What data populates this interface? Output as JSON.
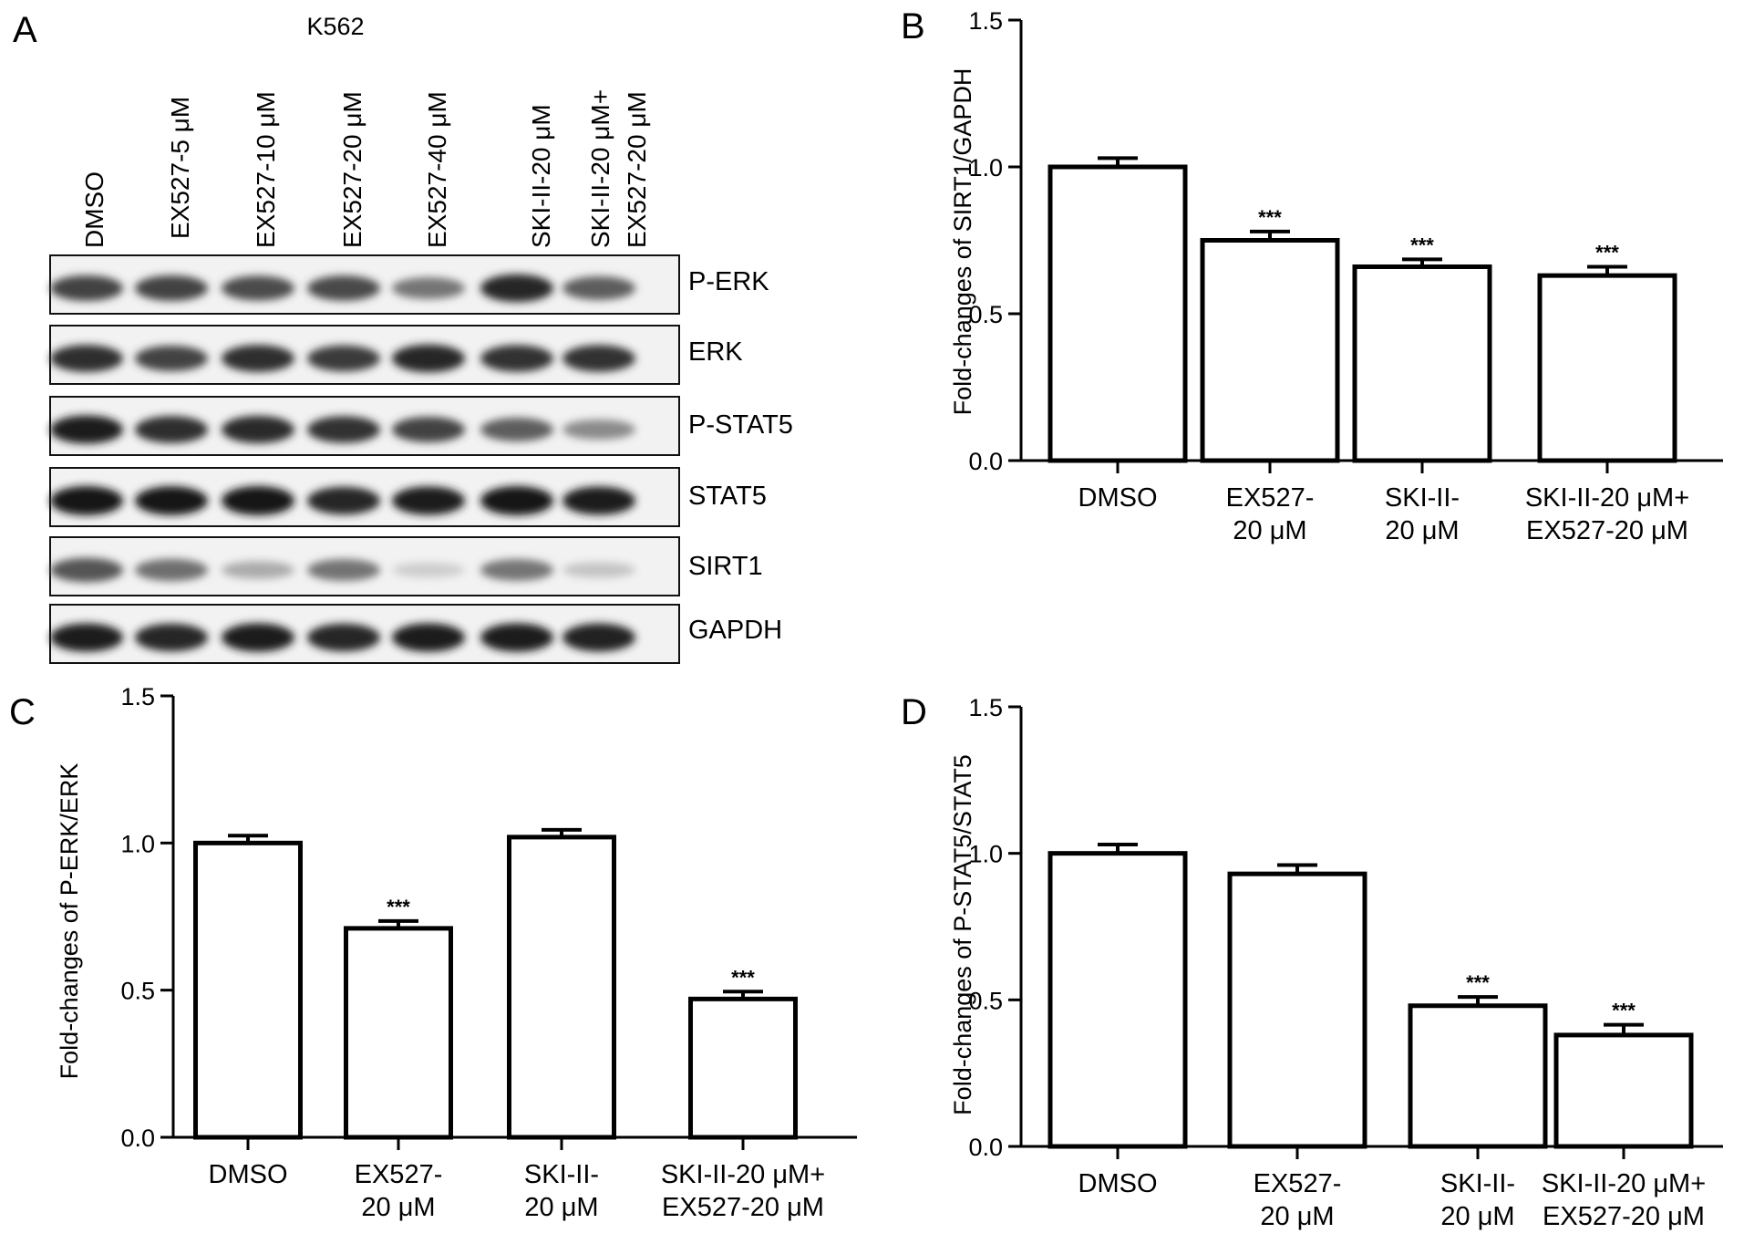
{
  "panel_a": {
    "label": "A",
    "cell_line": "K562",
    "lanes": [
      "DMSO",
      "EX527-5 μM",
      "EX527-10 μM",
      "EX527-20 μM",
      "EX527-40 μM",
      "SKI-II-20 μM",
      "SKI-II-20 μM+",
      "EX527-20 μM"
    ],
    "lane_count": 7,
    "blots": [
      {
        "protein": "P-ERK",
        "intensity": [
          0.78,
          0.78,
          0.74,
          0.76,
          0.55,
          0.92,
          0.66
        ]
      },
      {
        "protein": "ERK",
        "intensity": [
          0.88,
          0.78,
          0.88,
          0.82,
          0.92,
          0.86,
          0.86
        ]
      },
      {
        "protein": "P-STAT5",
        "intensity": [
          0.95,
          0.88,
          0.9,
          0.86,
          0.78,
          0.66,
          0.45
        ]
      },
      {
        "protein": "STAT5",
        "intensity": [
          1.0,
          0.98,
          1.0,
          0.92,
          0.96,
          1.0,
          0.95
        ]
      },
      {
        "protein": "SIRT1",
        "intensity": [
          0.7,
          0.58,
          0.3,
          0.56,
          0.14,
          0.55,
          0.18
        ]
      },
      {
        "protein": "GAPDH",
        "intensity": [
          0.95,
          0.92,
          0.96,
          0.92,
          0.96,
          0.96,
          0.94
        ]
      }
    ]
  },
  "chart_data": [
    {
      "panel": "B",
      "type": "bar",
      "categories": [
        [
          "DMSO"
        ],
        [
          "EX527-",
          "20 μM"
        ],
        [
          "SKI-II-",
          "20 μM"
        ],
        [
          "SKI-II-20 μM+",
          "EX527-20 μM"
        ]
      ],
      "values": [
        1.0,
        0.75,
        0.66,
        0.63
      ],
      "errors": [
        0.03,
        0.03,
        0.025,
        0.03
      ],
      "significance": [
        "",
        "***",
        "***",
        "***"
      ],
      "ylabel": "Fold-changes of SIRT1/GAPDH",
      "ylim": [
        0,
        1.5
      ],
      "yticks": [
        "0.0",
        "0.5",
        "1.0",
        "1.5"
      ]
    },
    {
      "panel": "C",
      "type": "bar",
      "categories": [
        [
          "DMSO"
        ],
        [
          "EX527-",
          "20 μM"
        ],
        [
          "SKI-II-",
          "20 μM"
        ],
        [
          "SKI-II-20 μM+",
          "EX527-20 μM"
        ]
      ],
      "values": [
        1.0,
        0.71,
        1.02,
        0.47
      ],
      "errors": [
        0.025,
        0.025,
        0.025,
        0.025
      ],
      "significance": [
        "",
        "***",
        "",
        "***"
      ],
      "ylabel": "Fold-changes of P-ERK/ERK",
      "ylim": [
        0,
        1.5
      ],
      "yticks": [
        "0.0",
        "0.5",
        "1.0",
        "1.5"
      ]
    },
    {
      "panel": "D",
      "type": "bar",
      "categories": [
        [
          "DMSO"
        ],
        [
          "EX527-",
          "20 μM"
        ],
        [
          "SKI-II-",
          "20 μM"
        ],
        [
          "SKI-II-20 μM+",
          "EX527-20 μM"
        ]
      ],
      "values": [
        1.0,
        0.93,
        0.48,
        0.38
      ],
      "errors": [
        0.03,
        0.03,
        0.03,
        0.035
      ],
      "significance": [
        "",
        "",
        "***",
        "***"
      ],
      "ylabel": "Fold-changes of P-STAT5/STAT5",
      "ylim": [
        0,
        1.5
      ],
      "yticks": [
        "0.0",
        "0.5",
        "1.0",
        "1.5"
      ]
    }
  ]
}
